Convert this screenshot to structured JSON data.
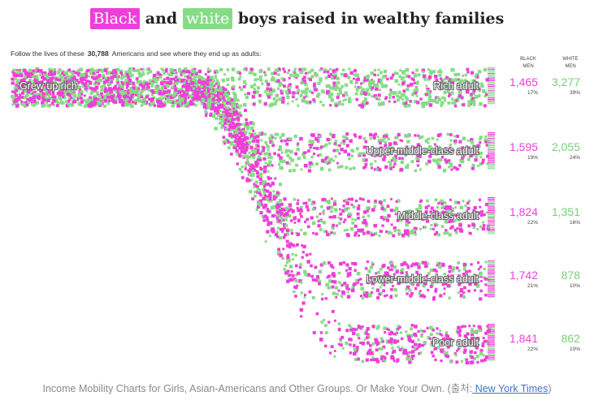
{
  "title": {
    "word_black": "Black",
    "word_and": "and",
    "word_white": "white",
    "rest": "boys raised in wealthy families"
  },
  "subtitle": {
    "pre": "Follow the lives of these",
    "count": "30,788",
    "post": "Americans and see where they end up as adults:"
  },
  "column_headers": {
    "black": [
      "BLACK",
      "MEN"
    ],
    "white": [
      "WHITE",
      "MEN"
    ]
  },
  "colors": {
    "black": "#ee3fd8",
    "white": "#86dc86"
  },
  "chart_data": {
    "type": "flow-dot",
    "origin_label": "Grew up rich",
    "series": [
      {
        "name": "BLACK MEN",
        "color": "#ee3fd8"
      },
      {
        "name": "WHITE MEN",
        "color": "#86dc86"
      }
    ],
    "rows": [
      {
        "label": "Rich adult",
        "black": 1465,
        "black_pct": "17%",
        "white": 3277,
        "white_pct": "39%"
      },
      {
        "label": "Upper-middle-class adult",
        "black": 1595,
        "black_pct": "19%",
        "white": 2055,
        "white_pct": "24%"
      },
      {
        "label": "Middle-class adult",
        "black": 1824,
        "black_pct": "22%",
        "white": 1351,
        "white_pct": "16%"
      },
      {
        "label": "Lower-middle-class adult",
        "black": 1742,
        "black_pct": "21%",
        "white": 878,
        "white_pct": "10%"
      },
      {
        "label": "Poor adult",
        "black": 1841,
        "black_pct": "22%",
        "white": 862,
        "white_pct": "10%"
      }
    ],
    "value_labels": [
      [
        "1,465",
        "3,277"
      ],
      [
        "1,595",
        "2,055"
      ],
      [
        "1,824",
        "1,351"
      ],
      [
        "1,742",
        "878"
      ],
      [
        "1,841",
        "862"
      ]
    ]
  },
  "caption": {
    "text": "Income Mobility Charts for Girls, Asian-Americans and Other Groups. Or Make Your Own. (출처:",
    "link": " New York Times",
    "close": ")"
  }
}
